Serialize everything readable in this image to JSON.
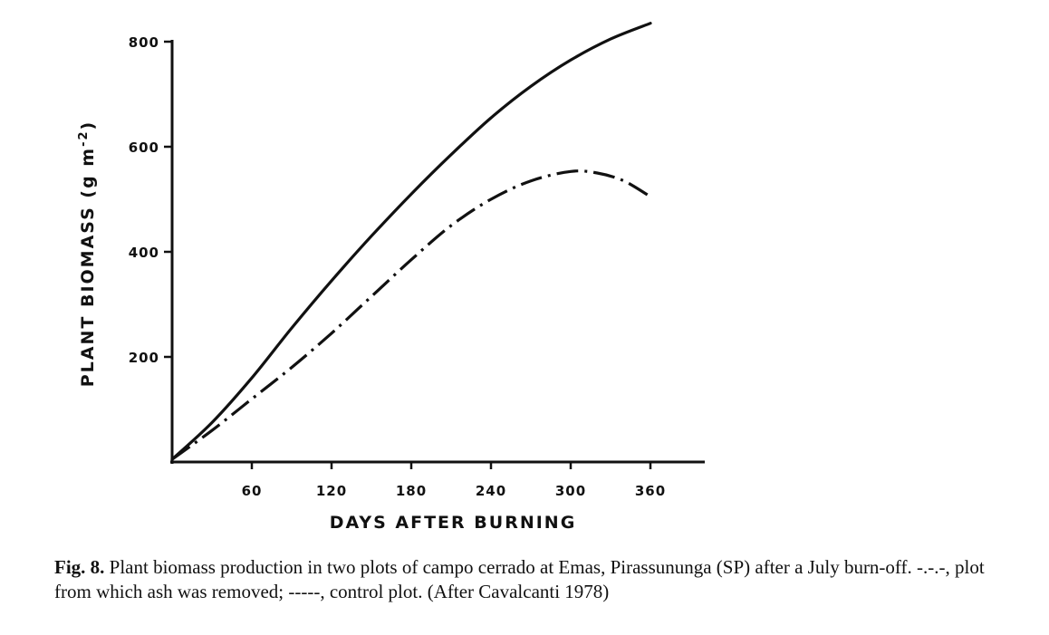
{
  "chart_data": {
    "type": "line",
    "title": "",
    "xlabel": "DAYS AFTER BURNING",
    "ylabel": "PLANT BIOMASS (g m",
    "ylabel_sup": "-2",
    "ylabel_close": ")",
    "xlim": [
      0,
      395
    ],
    "ylim": [
      0,
      800
    ],
    "xticks": [
      60,
      120,
      180,
      240,
      300,
      360
    ],
    "yticks": [
      200,
      400,
      600,
      800
    ],
    "grid": false,
    "series": [
      {
        "style": "solid",
        "x": [
          0,
          30,
          60,
          90,
          120,
          150,
          180,
          210,
          240,
          270,
          300,
          330,
          360
        ],
        "y": [
          5,
          75,
          160,
          255,
          345,
          430,
          510,
          585,
          655,
          715,
          765,
          805,
          835
        ]
      },
      {
        "style": "dash-dot",
        "x": [
          0,
          30,
          60,
          90,
          120,
          150,
          180,
          210,
          240,
          270,
          300,
          320,
          340,
          360
        ],
        "y": [
          5,
          60,
          120,
          180,
          245,
          315,
          385,
          450,
          500,
          535,
          553,
          550,
          535,
          505
        ]
      }
    ]
  },
  "caption": {
    "label": "Fig. 8.",
    "text": " Plant biomass production in two plots of campo cerrado at Emas, Pirassununga (SP) after a July burn-off. -.-.-, plot from which ash was removed; -----, control plot. (After Cavalcanti 1978)"
  }
}
